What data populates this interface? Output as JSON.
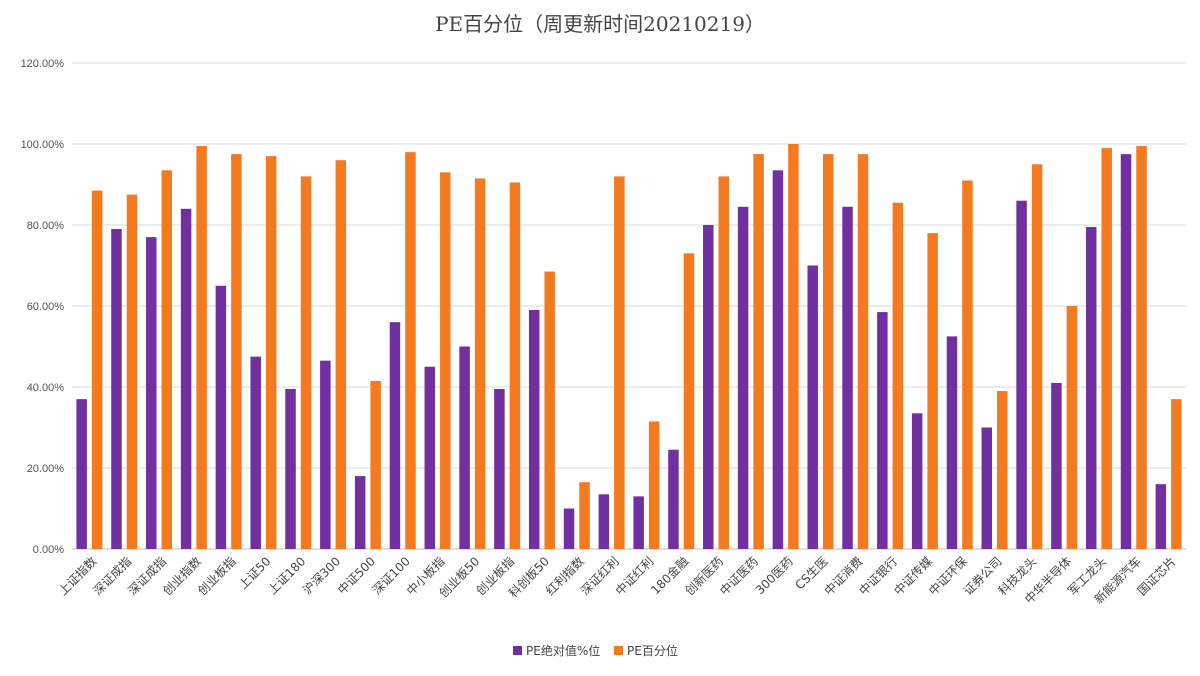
{
  "chart_data": {
    "type": "bar",
    "title": "PE百分位（周更新时间20210219）",
    "xlabel": "",
    "ylabel": "",
    "ylim": [
      0,
      1.2
    ],
    "y_ticks": [
      "0.00%",
      "20.00%",
      "40.00%",
      "60.00%",
      "80.00%",
      "100.00%",
      "120.00%"
    ],
    "y_tick_values": [
      0,
      0.2,
      0.4,
      0.6,
      0.8,
      1.0,
      1.2
    ],
    "grid": true,
    "legend_position": "bottom",
    "categories": [
      "上证指数",
      "深证成指",
      "深证成指",
      "创业指数",
      "创业板指",
      "上证50",
      "上证180",
      "沪深300",
      "中证500",
      "深证100",
      "中小板指",
      "创业板50",
      "创业板指",
      "科创板50",
      "红利指数",
      "深证红利",
      "中证红利",
      "180金融",
      "创新医药",
      "中证医药",
      "300医药",
      "CS生医",
      "中证消费",
      "中证银行",
      "中证传媒",
      "中证环保",
      "证券公司",
      "科技龙头",
      "中华半导体",
      "军工龙头",
      "新能源汽车",
      "国证芯片"
    ],
    "series": [
      {
        "name": "PE绝对值%位",
        "color": "#7030a0",
        "values": [
          0.37,
          0.79,
          0.77,
          0.84,
          0.65,
          0.475,
          0.395,
          0.465,
          0.18,
          0.56,
          0.45,
          0.5,
          0.395,
          0.59,
          0.1,
          0.135,
          0.13,
          0.245,
          0.8,
          0.845,
          0.935,
          0.7,
          0.845,
          0.585,
          0.335,
          0.525,
          0.3,
          0.86,
          0.41,
          0.795,
          0.975,
          0.16
        ]
      },
      {
        "name": "PE百分位",
        "color": "#f47a20",
        "values": [
          0.885,
          0.875,
          0.935,
          0.995,
          0.975,
          0.97,
          0.92,
          0.96,
          0.415,
          0.98,
          0.93,
          0.915,
          0.905,
          0.685,
          0.165,
          0.92,
          0.315,
          0.73,
          0.92,
          0.975,
          1.0,
          0.975,
          0.975,
          0.855,
          0.78,
          0.91,
          0.39,
          0.95,
          0.6,
          0.99,
          0.995,
          0.37
        ]
      }
    ]
  }
}
